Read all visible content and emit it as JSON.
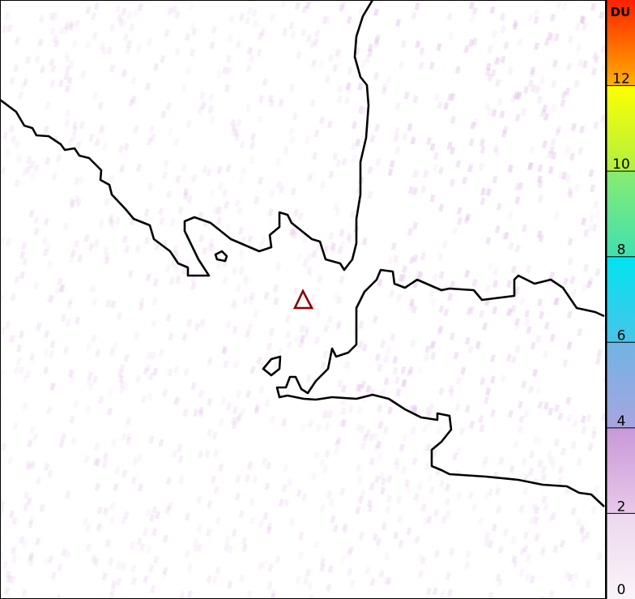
{
  "colorbar": {
    "unit": "DU",
    "ticks": [
      "0",
      "2",
      "4",
      "6",
      "8",
      "10",
      "12"
    ],
    "range": [
      0,
      14
    ],
    "stops": [
      {
        "value": 0,
        "color": "#faf4fa"
      },
      {
        "value": 2,
        "color": "#ecd8ee"
      },
      {
        "value": 2.01,
        "color": "#e8c8ea"
      },
      {
        "value": 4,
        "color": "#c898d8"
      },
      {
        "value": 4.01,
        "color": "#a8a4e0"
      },
      {
        "value": 6,
        "color": "#70b4e4"
      },
      {
        "value": 6.01,
        "color": "#48c4e8"
      },
      {
        "value": 8,
        "color": "#00e4f0"
      },
      {
        "value": 8.01,
        "color": "#40e0b0"
      },
      {
        "value": 10,
        "color": "#88ec70"
      },
      {
        "value": 10.01,
        "color": "#b0f040"
      },
      {
        "value": 12,
        "color": "#ffff00"
      },
      {
        "value": 12.01,
        "color": "#ffb000"
      },
      {
        "value": 14,
        "color": "#ff2000"
      }
    ]
  },
  "map": {
    "background_color": "#ffffff",
    "noise_color": "#d8a8e0",
    "coastline_color": "#000000",
    "marker": {
      "type": "volcano-triangle",
      "color": "#8b0000"
    }
  }
}
